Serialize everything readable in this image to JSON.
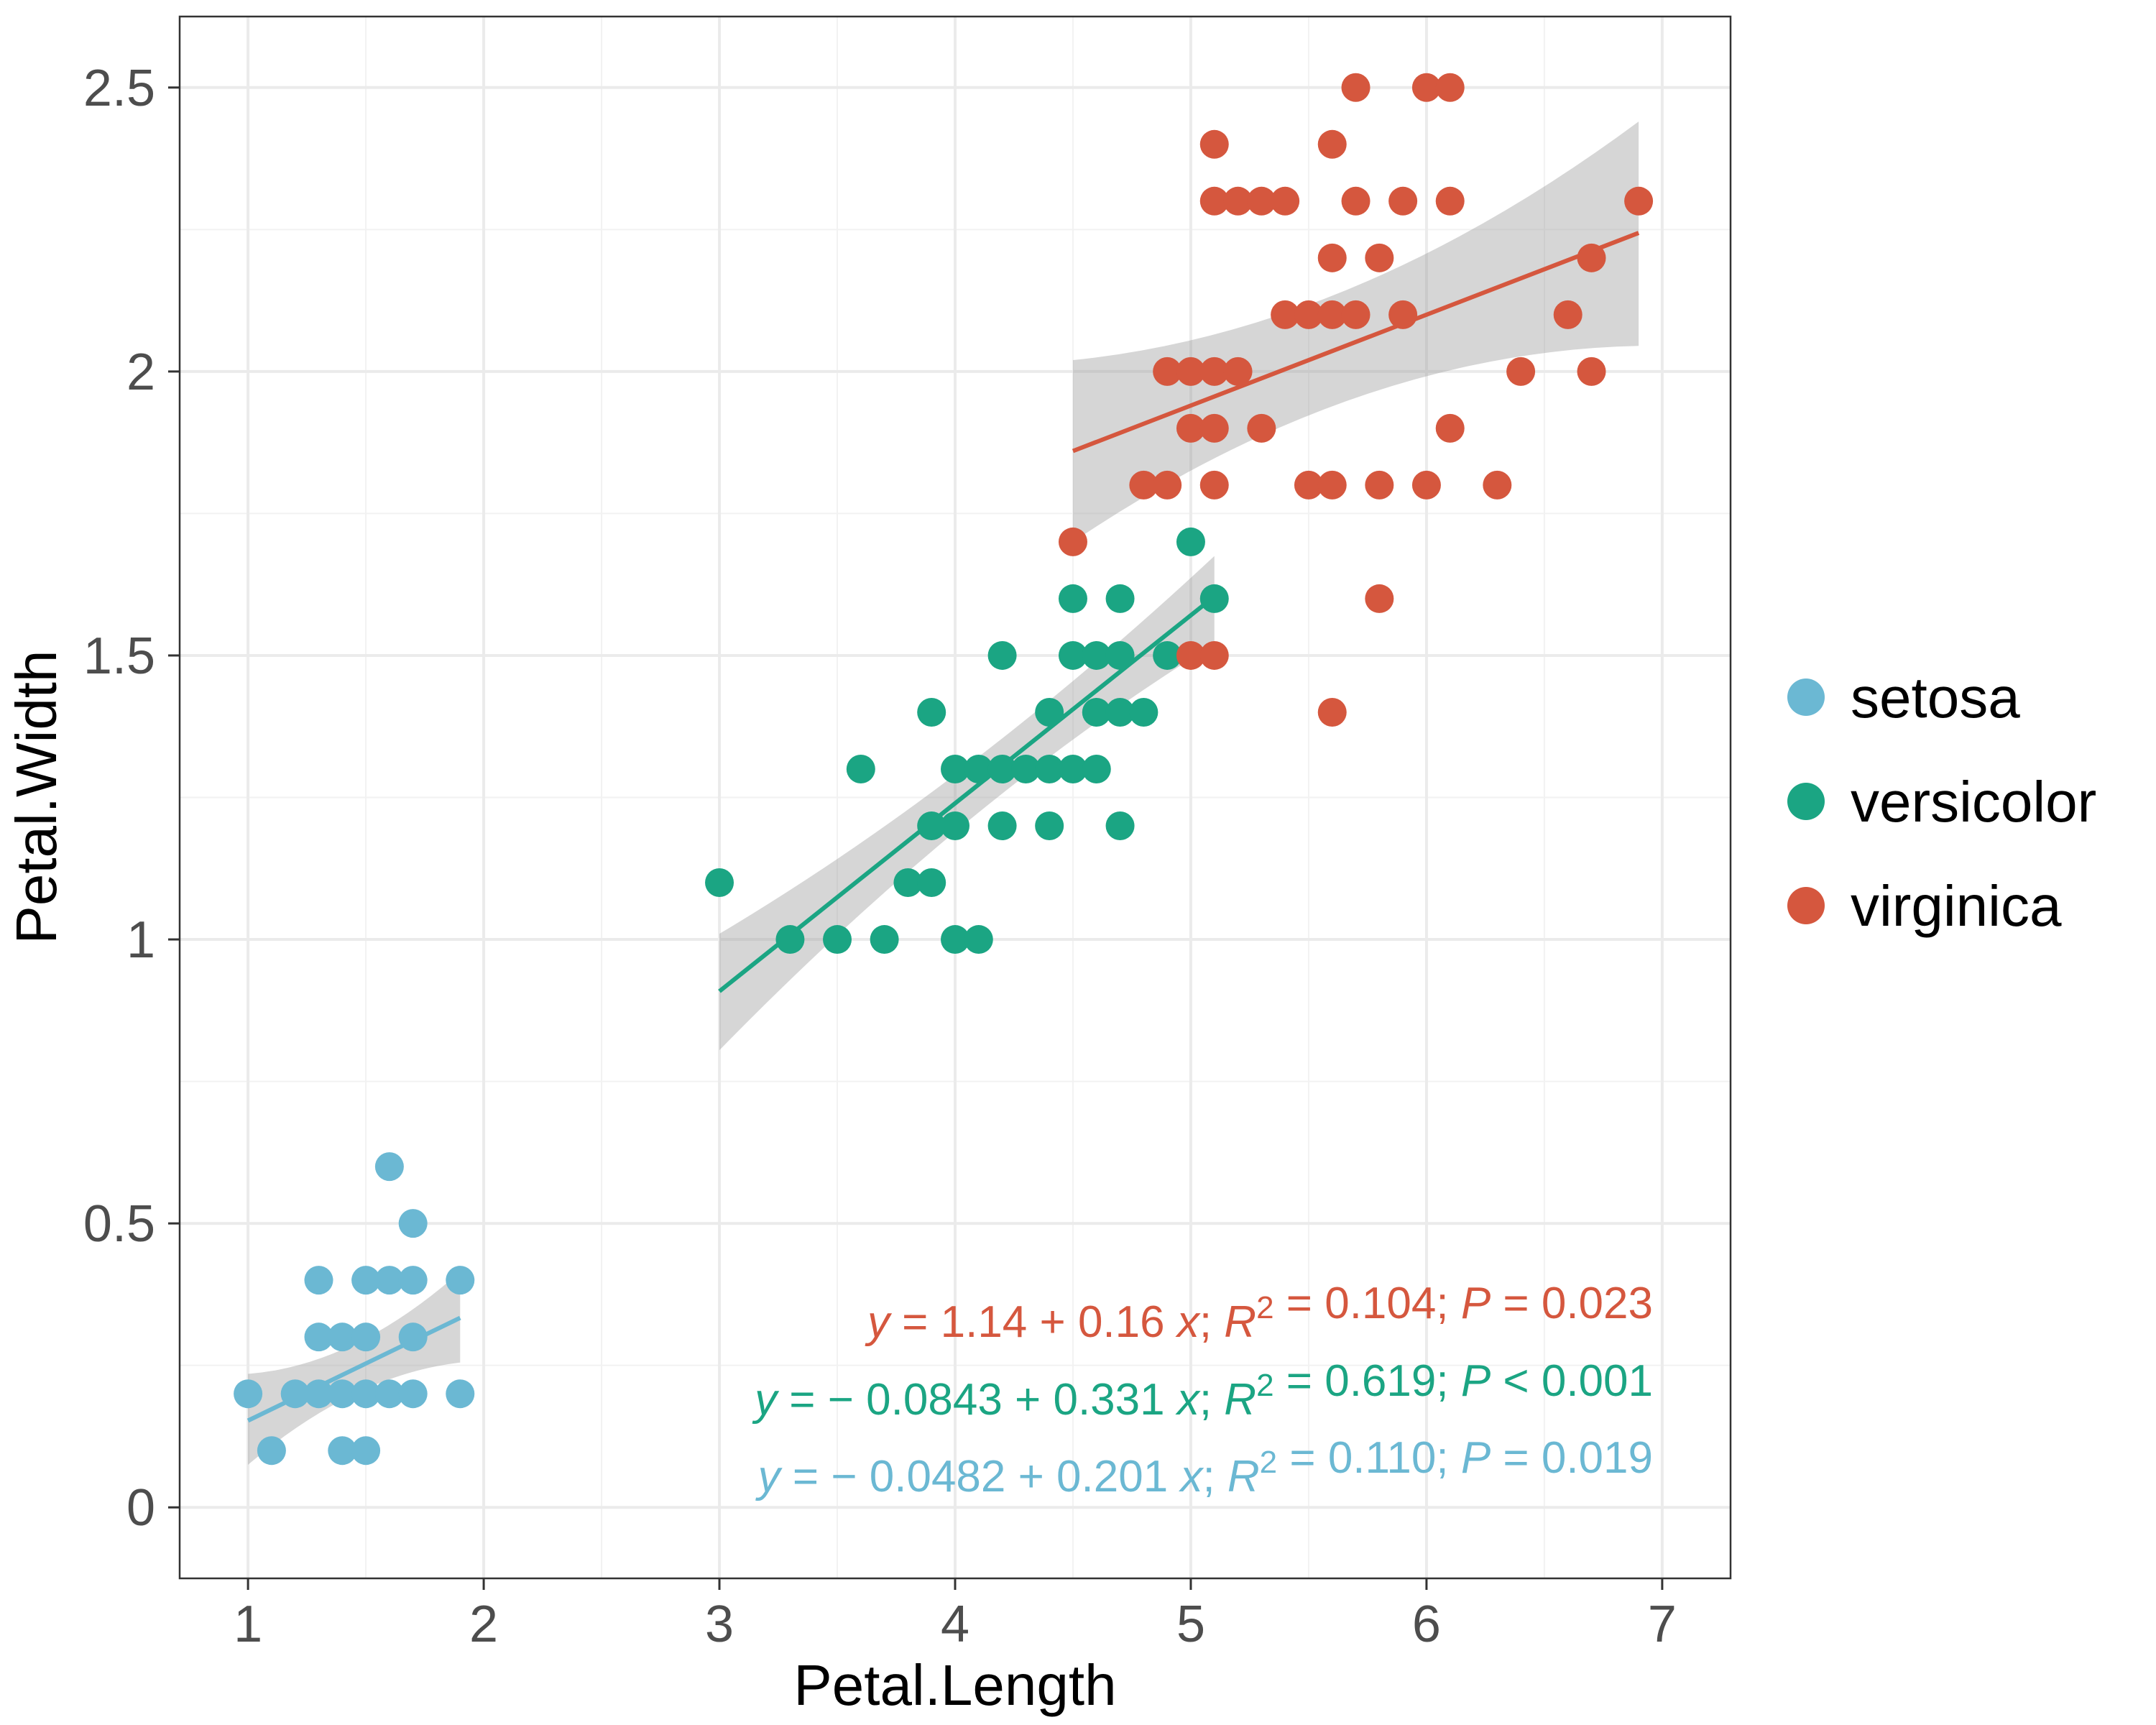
{
  "chart_data": {
    "type": "scatter",
    "xlabel": "Petal.Length",
    "ylabel": "Petal.Width",
    "xlim": [
      0.71,
      7.29
    ],
    "ylim": [
      -0.125,
      2.625
    ],
    "x_ticks": [
      1,
      2,
      3,
      4,
      5,
      6,
      7
    ],
    "x_tick_labels": [
      "1",
      "2",
      "3",
      "4",
      "5",
      "6",
      "7"
    ],
    "y_ticks": [
      0,
      0.5,
      1,
      1.5,
      2,
      2.5
    ],
    "y_tick_labels": [
      "0",
      "0.5",
      "1",
      "1.5",
      "2",
      "2.5"
    ],
    "grid": true,
    "legend_position": "right",
    "series": [
      {
        "name": "setosa",
        "color": "#6BB8D3",
        "points": [
          [
            1.0,
            0.2
          ],
          [
            1.1,
            0.1
          ],
          [
            1.2,
            0.2
          ],
          [
            1.3,
            0.2
          ],
          [
            1.3,
            0.3
          ],
          [
            1.3,
            0.4
          ],
          [
            1.4,
            0.1
          ],
          [
            1.4,
            0.2
          ],
          [
            1.4,
            0.3
          ],
          [
            1.5,
            0.1
          ],
          [
            1.5,
            0.2
          ],
          [
            1.5,
            0.3
          ],
          [
            1.5,
            0.4
          ],
          [
            1.6,
            0.2
          ],
          [
            1.6,
            0.4
          ],
          [
            1.6,
            0.6
          ],
          [
            1.7,
            0.2
          ],
          [
            1.7,
            0.3
          ],
          [
            1.7,
            0.4
          ],
          [
            1.7,
            0.5
          ],
          [
            1.9,
            0.2
          ],
          [
            1.9,
            0.4
          ]
        ],
        "fit": {
          "x_range": [
            1.0,
            1.9
          ],
          "intercept": -0.0482,
          "slope": 0.201,
          "band_lower": [
            0.075,
            0.255
          ],
          "band_upper": [
            0.235,
            0.415
          ]
        },
        "equation": {
          "y": "y",
          "eq1": " = − 0.0482 + 0.201 ",
          "x": "x",
          "sep1": "; ",
          "R": "R",
          "sup": "2",
          "eq2": " = 0.110; ",
          "P": "P",
          "eq3": " = 0.019"
        }
      },
      {
        "name": "versicolor",
        "color": "#1BA583",
        "points": [
          [
            3.0,
            1.1
          ],
          [
            3.3,
            1.0
          ],
          [
            3.5,
            1.0
          ],
          [
            3.6,
            1.3
          ],
          [
            3.7,
            1.0
          ],
          [
            3.8,
            1.1
          ],
          [
            3.9,
            1.1
          ],
          [
            3.9,
            1.2
          ],
          [
            3.9,
            1.4
          ],
          [
            4.0,
            1.0
          ],
          [
            4.0,
            1.2
          ],
          [
            4.0,
            1.3
          ],
          [
            4.1,
            1.0
          ],
          [
            4.1,
            1.3
          ],
          [
            4.2,
            1.2
          ],
          [
            4.2,
            1.3
          ],
          [
            4.2,
            1.5
          ],
          [
            4.3,
            1.3
          ],
          [
            4.4,
            1.2
          ],
          [
            4.4,
            1.3
          ],
          [
            4.4,
            1.4
          ],
          [
            4.5,
            1.3
          ],
          [
            4.5,
            1.5
          ],
          [
            4.5,
            1.6
          ],
          [
            4.6,
            1.3
          ],
          [
            4.6,
            1.4
          ],
          [
            4.6,
            1.5
          ],
          [
            4.7,
            1.2
          ],
          [
            4.7,
            1.4
          ],
          [
            4.7,
            1.5
          ],
          [
            4.7,
            1.6
          ],
          [
            4.8,
            1.4
          ],
          [
            4.9,
            1.5
          ],
          [
            5.0,
            1.7
          ],
          [
            5.1,
            1.6
          ]
        ],
        "fit": {
          "x_range": [
            3.0,
            5.1
          ],
          "intercept": -0.0843,
          "slope": 0.331,
          "band_lower": [
            0.805,
            1.52
          ],
          "band_upper": [
            1.01,
            1.675
          ]
        },
        "equation": {
          "y": "y",
          "eq1": " = − 0.0843 + 0.331 ",
          "x": "x",
          "sep1": "; ",
          "R": "R",
          "sup": "2",
          "eq2": " = 0.619; ",
          "P": "P",
          "eq3": " < 0.001"
        }
      },
      {
        "name": "virginica",
        "color": "#D5573E",
        "points": [
          [
            4.5,
            1.7
          ],
          [
            4.8,
            1.8
          ],
          [
            4.9,
            1.8
          ],
          [
            4.9,
            2.0
          ],
          [
            5.0,
            1.5
          ],
          [
            5.0,
            1.9
          ],
          [
            5.0,
            2.0
          ],
          [
            5.1,
            1.5
          ],
          [
            5.1,
            1.8
          ],
          [
            5.1,
            1.9
          ],
          [
            5.1,
            2.0
          ],
          [
            5.1,
            2.3
          ],
          [
            5.1,
            2.4
          ],
          [
            5.2,
            2.0
          ],
          [
            5.2,
            2.3
          ],
          [
            5.3,
            1.9
          ],
          [
            5.3,
            2.3
          ],
          [
            5.4,
            2.1
          ],
          [
            5.4,
            2.3
          ],
          [
            5.5,
            1.8
          ],
          [
            5.5,
            2.1
          ],
          [
            5.6,
            1.4
          ],
          [
            5.6,
            1.8
          ],
          [
            5.6,
            2.1
          ],
          [
            5.6,
            2.2
          ],
          [
            5.6,
            2.4
          ],
          [
            5.7,
            2.1
          ],
          [
            5.7,
            2.3
          ],
          [
            5.7,
            2.5
          ],
          [
            5.8,
            1.6
          ],
          [
            5.8,
            1.8
          ],
          [
            5.8,
            2.2
          ],
          [
            5.9,
            2.1
          ],
          [
            5.9,
            2.3
          ],
          [
            6.0,
            1.8
          ],
          [
            6.0,
            2.5
          ],
          [
            6.1,
            1.9
          ],
          [
            6.1,
            2.3
          ],
          [
            6.1,
            2.5
          ],
          [
            6.3,
            1.8
          ],
          [
            6.4,
            2.0
          ],
          [
            6.6,
            2.1
          ],
          [
            6.7,
            2.0
          ],
          [
            6.7,
            2.2
          ],
          [
            6.9,
            2.3
          ]
        ],
        "fit": {
          "x_range": [
            4.5,
            6.9
          ],
          "intercept": 1.14,
          "slope": 0.16,
          "band_lower": [
            1.7,
            2.045
          ],
          "band_upper": [
            2.02,
            2.44
          ]
        },
        "equation": {
          "y": "y",
          "eq1": " = 1.14 + 0.16 ",
          "x": "x",
          "sep1": "; ",
          "R": "R",
          "sup": "2",
          "eq2": " = 0.104; ",
          "P": "P",
          "eq3": " = 0.023"
        }
      }
    ]
  }
}
